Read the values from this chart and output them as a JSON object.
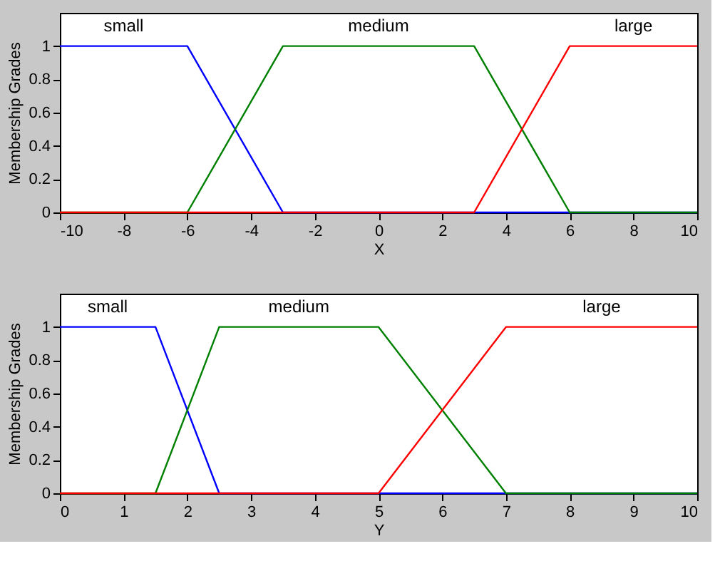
{
  "chart_data": [
    {
      "type": "line",
      "xlabel": "X",
      "ylabel": "Membership Grades",
      "xlim": [
        -10,
        10
      ],
      "xticks": [
        -10,
        -8,
        -6,
        -4,
        -2,
        0,
        2,
        4,
        6,
        8,
        10
      ],
      "ylim": [
        0,
        1.2
      ],
      "yticks": [
        0,
        0.2,
        0.4,
        0.6,
        0.8,
        1
      ],
      "grid": false,
      "legend": false,
      "series": [
        {
          "name": "small",
          "color": "#0000ff",
          "x": [
            -10,
            -6,
            -3,
            10
          ],
          "values": [
            1,
            1,
            0,
            0
          ]
        },
        {
          "name": "medium",
          "color": "#008000",
          "x": [
            -10,
            -6,
            -3,
            3,
            6,
            10
          ],
          "values": [
            0,
            0,
            1,
            1,
            0,
            0
          ]
        },
        {
          "name": "large",
          "color": "#ff0000",
          "x": [
            -10,
            3,
            6,
            10
          ],
          "values": [
            0,
            0,
            1,
            1
          ]
        }
      ]
    },
    {
      "type": "line",
      "xlabel": "Y",
      "ylabel": "Membership Grades",
      "xlim": [
        0,
        10
      ],
      "xticks": [
        0,
        1,
        2,
        3,
        4,
        5,
        6,
        7,
        8,
        9,
        10
      ],
      "ylim": [
        0,
        1.2
      ],
      "yticks": [
        0,
        0.2,
        0.4,
        0.6,
        0.8,
        1
      ],
      "grid": false,
      "legend": false,
      "series": [
        {
          "name": "small",
          "color": "#0000ff",
          "x": [
            0,
            1.5,
            2.5,
            10
          ],
          "values": [
            1,
            1,
            0,
            0
          ]
        },
        {
          "name": "medium",
          "color": "#008000",
          "x": [
            0,
            1.5,
            2.5,
            5,
            7,
            10
          ],
          "values": [
            0,
            0,
            1,
            1,
            0,
            0
          ]
        },
        {
          "name": "large",
          "color": "#ff0000",
          "x": [
            0,
            5,
            7,
            10
          ],
          "values": [
            0,
            0,
            1,
            1
          ]
        }
      ]
    }
  ]
}
